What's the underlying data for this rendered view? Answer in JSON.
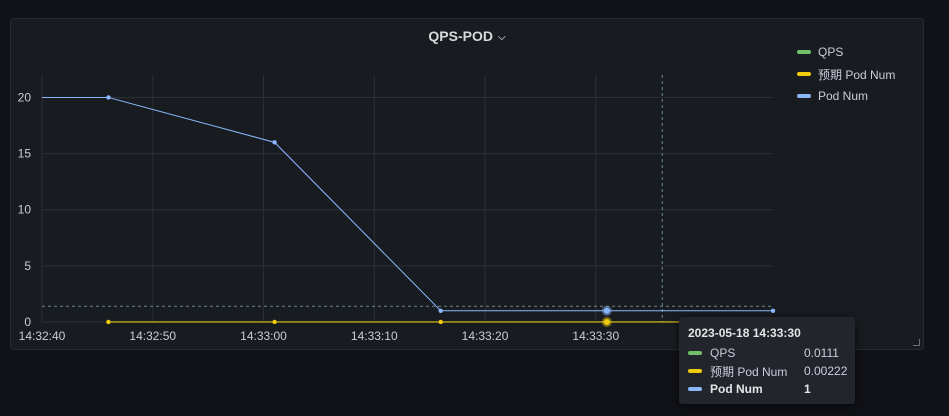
{
  "panel": {
    "title": "QPS-POD",
    "title_chevron": "⌵"
  },
  "colors": {
    "QPS": "#73bf69",
    "expected": "#f2cc0c",
    "pod": "#8ab8ff"
  },
  "legend": [
    {
      "label": "QPS",
      "color": "#73bf69"
    },
    {
      "label": "预期 Pod Num",
      "color": "#f2cc0c"
    },
    {
      "label": "Pod Num",
      "color": "#8ab8ff"
    }
  ],
  "tooltip": {
    "time": "2023-05-18 14:33:30",
    "rows": [
      {
        "label": "QPS",
        "value": "0.0111",
        "color": "#73bf69"
      },
      {
        "label": "预期 Pod Num",
        "value": "0.00222",
        "color": "#f2cc0c"
      },
      {
        "label": "Pod Num",
        "value": "1",
        "color": "#8ab8ff"
      }
    ]
  },
  "chart_data": {
    "type": "line",
    "title": "QPS-POD",
    "xlabel": "",
    "ylabel": "",
    "x_ticks": [
      "14:32:40",
      "14:32:50",
      "14:33:00",
      "14:33:10",
      "14:33:20",
      "14:33:30"
    ],
    "y_ticks": [
      "0",
      "5",
      "10",
      "15",
      "20"
    ],
    "xlim": [
      "14:32:40",
      "14:33:46"
    ],
    "ylim": [
      0,
      22
    ],
    "grid": true,
    "legend_position": "right",
    "hover_x": "14:33:36",
    "hover_y": 1.4,
    "series": [
      {
        "name": "QPS",
        "points": [
          [
            "14:32:46",
            0.0111
          ],
          [
            "14:33:01",
            0.0111
          ],
          [
            "14:33:16",
            0.0111
          ],
          [
            "14:33:31",
            0.0111
          ],
          [
            "14:33:46",
            0.0111
          ]
        ]
      },
      {
        "name": "预期 Pod Num",
        "points": [
          [
            "14:32:46",
            0.00222
          ],
          [
            "14:33:01",
            0.00222
          ],
          [
            "14:33:16",
            0.00222
          ],
          [
            "14:33:31",
            0.00222
          ],
          [
            "14:33:46",
            0.00222
          ]
        ]
      },
      {
        "name": "Pod Num",
        "points": [
          [
            "14:32:40",
            20
          ],
          [
            "14:32:46",
            20
          ],
          [
            "14:33:01",
            16
          ],
          [
            "14:33:16",
            1
          ],
          [
            "14:33:31",
            1
          ],
          [
            "14:33:46",
            1
          ]
        ]
      }
    ]
  }
}
